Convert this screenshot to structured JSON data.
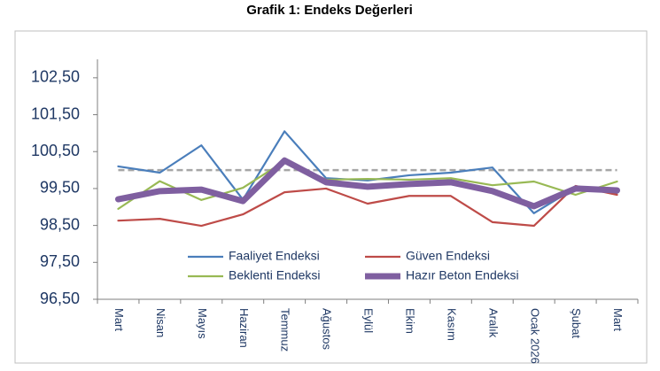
{
  "chart_data": {
    "type": "line",
    "title": "Grafik 1: Endeks Değerleri",
    "categories": [
      "Mart",
      "Nisan",
      "Mayıs",
      "Haziran",
      "Temmuz",
      "Ağustos",
      "Eylül",
      "Ekim",
      "Kasım",
      "Aralık",
      "Ocak 2026",
      "Şubat",
      "Mart"
    ],
    "series": [
      {
        "name": "Faaliyet Endeksi",
        "color": "#4a7ebb",
        "values": [
          100.1,
          99.93,
          100.67,
          99.2,
          101.05,
          99.78,
          99.72,
          99.86,
          99.93,
          100.07,
          98.83,
          99.52,
          99.38
        ]
      },
      {
        "name": "Güven Endeksi",
        "color": "#be4b48",
        "values": [
          98.63,
          98.68,
          98.49,
          98.8,
          99.4,
          99.5,
          99.09,
          99.3,
          99.3,
          98.59,
          98.49,
          99.57,
          99.33
        ]
      },
      {
        "name": "Beklenti Endeksi",
        "color": "#98b954",
        "values": [
          98.95,
          99.7,
          99.19,
          99.52,
          100.24,
          99.74,
          99.76,
          99.74,
          99.78,
          99.59,
          99.69,
          99.33,
          99.69
        ]
      },
      {
        "name": "Hazır Beton Endeksi",
        "color": "#7f5fa0",
        "values": [
          99.21,
          99.43,
          99.47,
          99.16,
          100.26,
          99.67,
          99.55,
          99.62,
          99.67,
          99.43,
          99.02,
          99.5,
          99.45
        ]
      }
    ],
    "reference_line": 100,
    "ylim": [
      96.5,
      103
    ],
    "yticks": [
      {
        "value": 96.5,
        "label": "96,50"
      },
      {
        "value": 97.5,
        "label": "97,50"
      },
      {
        "value": 98.5,
        "label": "98,50"
      },
      {
        "value": 99.5,
        "label": "99,50"
      },
      {
        "value": 100.5,
        "label": "100,50"
      },
      {
        "value": 101.5,
        "label": "101,50"
      },
      {
        "value": 102.5,
        "label": "102,50"
      }
    ],
    "grid": false
  }
}
